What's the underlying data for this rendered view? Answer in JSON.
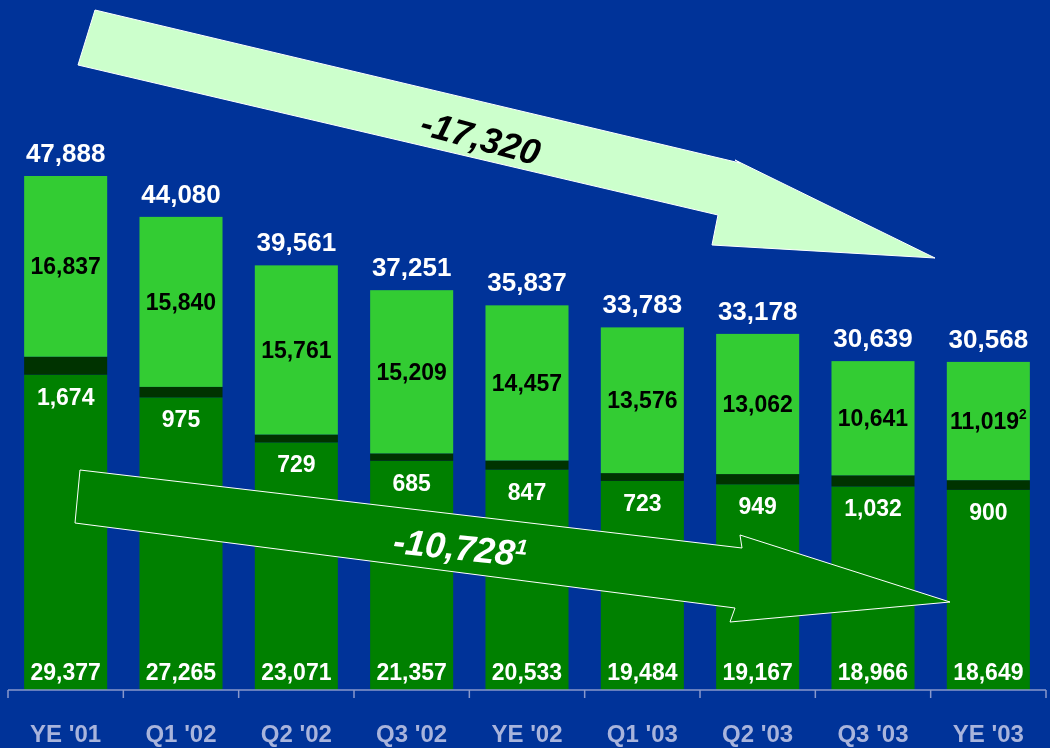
{
  "chart_data": {
    "type": "bar",
    "stacked": true,
    "categories": [
      "YE '01",
      "Q1 '02",
      "Q2 '02",
      "Q3 '02",
      "YE '02",
      "Q1 '03",
      "Q2 '03",
      "Q3 '03",
      "YE '03"
    ],
    "series": [
      {
        "color": "#008000",
        "values": [
          29377,
          27265,
          23071,
          21357,
          20533,
          19484,
          19167,
          18966,
          18649
        ],
        "value_labels": [
          "29,377",
          "27,265",
          "23,071",
          "21,357",
          "20,533",
          "19,484",
          "19,167",
          "18,966",
          "18,649"
        ]
      },
      {
        "color": "#003300",
        "values": [
          1674,
          975,
          729,
          685,
          847,
          723,
          949,
          1032,
          900
        ],
        "value_labels": [
          "1,674",
          "975",
          "729",
          "685",
          "847",
          "723",
          "949",
          "1,032",
          "900"
        ]
      },
      {
        "color": "#33cc33",
        "values": [
          16837,
          15840,
          15761,
          15209,
          14457,
          13576,
          13062,
          10641,
          11019
        ],
        "value_labels": [
          "16,837",
          "15,840",
          "15,761",
          "15,209",
          "14,457",
          "13,576",
          "13,062",
          "10,641",
          "11,019$^{2}$"
        ]
      }
    ],
    "totals": [
      "47,888",
      "44,080",
      "39,561",
      "37,251",
      "35,837",
      "33,783",
      "33,178",
      "30,639",
      "30,568"
    ],
    "tick_labels": "x",
    "annotations": [
      "-17,320",
      "-10,728$^{1}$"
    ]
  }
}
